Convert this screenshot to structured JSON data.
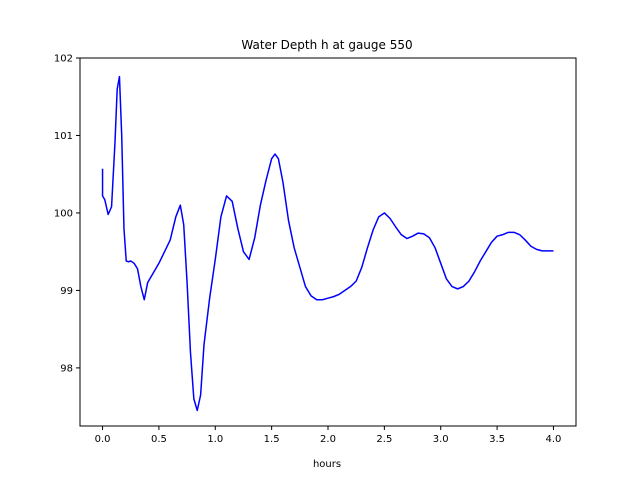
{
  "chart_data": {
    "type": "line",
    "title": "Water Depth h at gauge 550",
    "xlabel": "hours",
    "ylabel": "",
    "xlim": [
      -0.2,
      4.2
    ],
    "ylim": [
      97.25,
      102.0
    ],
    "xticks": [
      0.0,
      0.5,
      1.0,
      1.5,
      2.0,
      2.5,
      3.0,
      3.5,
      4.0
    ],
    "xtick_labels": [
      "0.0",
      "0.5",
      "1.0",
      "1.5",
      "2.0",
      "2.5",
      "3.0",
      "3.5",
      "4.0"
    ],
    "yticks": [
      98,
      99,
      100,
      101,
      102
    ],
    "ytick_labels": [
      "98",
      "99",
      "100",
      "101",
      "102"
    ],
    "grid": false,
    "legend": false,
    "series": [
      {
        "color": "#0000ff",
        "x": [
          0.0,
          0.0,
          0.02,
          0.05,
          0.08,
          0.11,
          0.13,
          0.15,
          0.17,
          0.19,
          0.21,
          0.23,
          0.25,
          0.28,
          0.31,
          0.34,
          0.37,
          0.4,
          0.44,
          0.5,
          0.55,
          0.6,
          0.65,
          0.69,
          0.72,
          0.75,
          0.78,
          0.81,
          0.84,
          0.87,
          0.9,
          0.95,
          1.0,
          1.05,
          1.1,
          1.15,
          1.2,
          1.25,
          1.3,
          1.35,
          1.4,
          1.45,
          1.5,
          1.53,
          1.56,
          1.6,
          1.65,
          1.7,
          1.75,
          1.8,
          1.85,
          1.9,
          1.95,
          2.0,
          2.05,
          2.1,
          2.15,
          2.2,
          2.25,
          2.3,
          2.35,
          2.4,
          2.45,
          2.5,
          2.55,
          2.6,
          2.65,
          2.7,
          2.75,
          2.8,
          2.85,
          2.9,
          2.95,
          3.0,
          3.05,
          3.1,
          3.15,
          3.2,
          3.25,
          3.3,
          3.35,
          3.4,
          3.45,
          3.5,
          3.55,
          3.6,
          3.65,
          3.7,
          3.75,
          3.8,
          3.85,
          3.9,
          3.95,
          4.0
        ],
        "y": [
          100.57,
          100.22,
          100.17,
          99.98,
          100.08,
          100.9,
          101.6,
          101.76,
          101.0,
          99.8,
          99.38,
          99.37,
          99.38,
          99.35,
          99.28,
          99.05,
          98.88,
          99.1,
          99.2,
          99.35,
          99.5,
          99.65,
          99.95,
          100.1,
          99.85,
          99.1,
          98.2,
          97.6,
          97.45,
          97.65,
          98.3,
          98.9,
          99.4,
          99.95,
          100.22,
          100.15,
          99.8,
          99.5,
          99.4,
          99.68,
          100.1,
          100.42,
          100.7,
          100.76,
          100.7,
          100.4,
          99.9,
          99.55,
          99.3,
          99.05,
          98.93,
          98.88,
          98.88,
          98.9,
          98.92,
          98.95,
          99.0,
          99.05,
          99.12,
          99.3,
          99.55,
          99.78,
          99.95,
          100.0,
          99.93,
          99.82,
          99.72,
          99.67,
          99.7,
          99.74,
          99.73,
          99.68,
          99.55,
          99.35,
          99.15,
          99.05,
          99.02,
          99.05,
          99.12,
          99.24,
          99.38,
          99.5,
          99.62,
          99.7,
          99.72,
          99.75,
          99.75,
          99.72,
          99.65,
          99.57,
          99.53,
          99.51,
          99.51,
          99.51
        ]
      }
    ]
  }
}
